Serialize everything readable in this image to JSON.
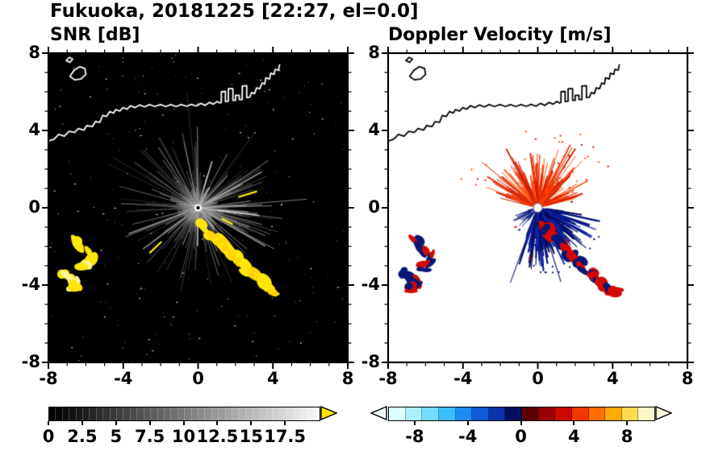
{
  "figure": {
    "title": "Fukuoka, 20181225 [22:27, el=0.0]",
    "background": "#ffffff"
  },
  "panels": {
    "snr": {
      "subtitle": "SNR [dB]",
      "background": "#000000",
      "coast_color": "#ffffff",
      "axis": {
        "xmin": -8,
        "xmax": 8,
        "ymin": -8,
        "ymax": 8,
        "x_ticks": [
          -8,
          -4,
          0,
          4,
          8
        ],
        "x_tick_labels": [
          "-8",
          "-4",
          "0",
          "4",
          "8"
        ],
        "y_ticks": [
          8,
          4,
          0,
          -4,
          -8
        ],
        "y_tick_labels": [
          "8",
          "4",
          "0",
          "-4",
          "-8"
        ],
        "minor_tick_step": 1
      }
    },
    "doppler": {
      "subtitle": "Doppler Velocity [m/s]",
      "background": "#ffffff",
      "coast_color": "#000000",
      "axis": {
        "xmin": -8,
        "xmax": 8,
        "ymin": -8,
        "ymax": 8,
        "x_ticks": [
          -8,
          -4,
          0,
          4,
          8
        ],
        "x_tick_labels": [
          "-8",
          "-4",
          "0",
          "4",
          "8"
        ],
        "y_ticks": [
          8,
          4,
          0,
          -4,
          -8
        ],
        "y_tick_labels": [
          "8",
          "4",
          "0",
          "-4",
          "-8"
        ],
        "minor_tick_step": 1
      }
    }
  },
  "colorbars": {
    "snr": {
      "min": 0,
      "max": 20,
      "segments": 40,
      "tick_values": [
        0,
        2.5,
        5,
        7.5,
        10,
        12.5,
        15,
        17.5
      ],
      "tick_labels": [
        "0",
        "2.5",
        "5",
        "7.5",
        "10",
        "12.5",
        "15",
        "17.5"
      ],
      "gradient_start": "#000000",
      "gradient_end": "#f5f5f5",
      "overflow_arrow_color": "#ffe400"
    },
    "doppler": {
      "min": -10,
      "max": 10,
      "tick_values": [
        -8,
        -4,
        0,
        4,
        8
      ],
      "tick_labels": [
        "-8",
        "-4",
        "0",
        "4",
        "8"
      ],
      "segment_colors": [
        "#dcffff",
        "#aaf0ff",
        "#73dcff",
        "#3cbeff",
        "#1e8cf0",
        "#0f5ad7",
        "#0a32aa",
        "#03105f",
        "#5f0000",
        "#9b0000",
        "#cd0a00",
        "#f03700",
        "#ff6e00",
        "#ffaa00",
        "#ffdc50",
        "#fff6c8"
      ],
      "underflow_arrow_color": "#f0ffff",
      "overflow_arrow_color": "#fffbe0"
    }
  },
  "chart_data": {
    "type": "heatmap",
    "title": "Fukuoka, 20181225 [22:27, el=0.0]",
    "site": "Fukuoka",
    "date": "20181225",
    "time": "22:27",
    "elevation_deg": 0.0,
    "panels": [
      {
        "name": "SNR",
        "units": "dB",
        "x_range": [
          -8,
          8
        ],
        "y_range": [
          -8,
          8
        ],
        "x_ticks": [
          -8,
          -4,
          0,
          4,
          8
        ],
        "y_ticks": [
          -8,
          -4,
          0,
          4,
          8
        ],
        "colorbar": {
          "min": 0,
          "max": 20,
          "ticks": [
            0,
            2.5,
            5,
            7.5,
            10,
            12.5,
            15,
            17.5
          ],
          "colormap": "grayscale black-to-white",
          "overflow": "yellow"
        },
        "notable_features": [
          "gray radial ground-clutter fan centered on the radar at (0,0), radius ~3.5",
          "sparse white noise speckle over black background",
          "yellow high-SNR echoes at the regions listed in echo_regions",
          "white coastline of Hakata Bay across the upper half of the map"
        ]
      },
      {
        "name": "Doppler Velocity",
        "units": "m/s",
        "x_range": [
          -8,
          8
        ],
        "y_range": [
          -8,
          8
        ],
        "x_ticks": [
          -8,
          -4,
          0,
          4,
          8
        ],
        "y_ticks": [
          -8,
          -4,
          0,
          4,
          8
        ],
        "colorbar": {
          "min": -10,
          "max": 10,
          "ticks": [
            -8,
            -4,
            0,
            4,
            8
          ],
          "colormap": "pale-cyan to navy for negative, dark-red to pale-yellow for positive"
        },
        "notable_features": [
          "red (positive velocity) fan pointing up / north of the radar",
          "navy (negative velocity) fan pointing down-right / southeast of the radar",
          "echo clusters of mixed red and navy pixels at the same locations as the SNR echoes",
          "black coastline across the upper half of the map"
        ]
      }
    ],
    "echo_regions": {
      "cluster_west_upper": [
        [
          -6.5,
          -1.8
        ],
        [
          -6.25,
          -2.05
        ],
        [
          -6.0,
          -2.3
        ],
        [
          -5.8,
          -2.6
        ],
        [
          -5.92,
          -2.9
        ],
        [
          -6.15,
          -3.08
        ]
      ],
      "cluster_west_lower": [
        [
          -7.15,
          -3.35
        ],
        [
          -6.9,
          -3.55
        ],
        [
          -6.62,
          -3.78
        ],
        [
          -6.5,
          -4.02
        ],
        [
          -6.72,
          -4.2
        ]
      ],
      "chain_southeast": [
        [
          0.15,
          -0.92
        ],
        [
          0.45,
          -1.18
        ],
        [
          0.75,
          -1.42
        ],
        [
          1.05,
          -1.62
        ],
        [
          1.32,
          -1.86
        ],
        [
          1.55,
          -2.1
        ],
        [
          1.75,
          -2.36
        ],
        [
          1.98,
          -2.6
        ],
        [
          2.18,
          -2.84
        ],
        [
          2.4,
          -3.02
        ],
        [
          2.62,
          -3.28
        ],
        [
          2.88,
          -3.44
        ],
        [
          3.12,
          -3.6
        ],
        [
          3.38,
          -3.78
        ],
        [
          3.6,
          -3.98
        ],
        [
          3.78,
          -4.22
        ],
        [
          4.02,
          -4.42
        ]
      ],
      "small_streaks": [
        [
          [
            2.15,
            0.55
          ],
          [
            3.15,
            0.85
          ]
        ],
        [
          [
            -2.6,
            -2.35
          ],
          [
            -1.95,
            -1.75
          ]
        ],
        [
          [
            1.25,
            -0.55
          ],
          [
            1.85,
            -0.85
          ]
        ]
      ]
    }
  }
}
